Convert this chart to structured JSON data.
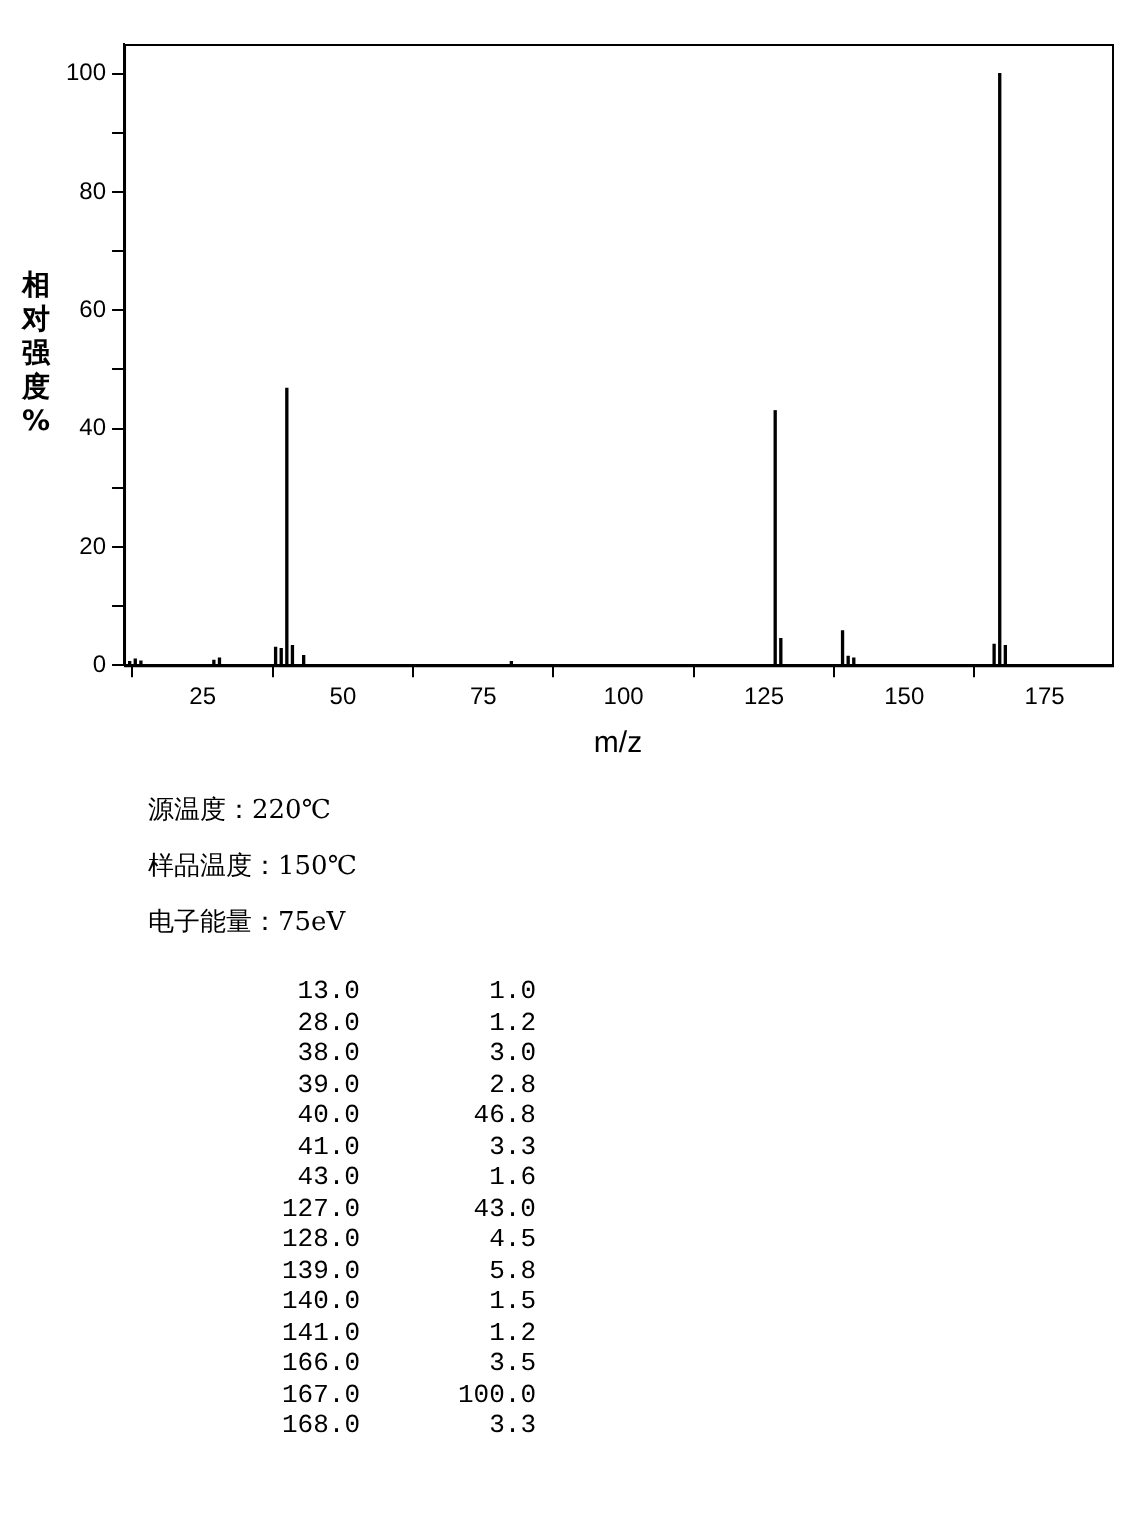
{
  "chart_data": [
    {
      "type": "bar",
      "xlabel": "m/z",
      "ylabel": "相对强度%",
      "x": [
        12,
        13,
        14,
        15,
        26,
        27,
        28,
        29,
        38,
        39,
        40,
        41,
        43,
        64,
        80,
        127,
        128,
        139,
        140,
        141,
        166,
        167,
        168
      ],
      "values": [
        0.6,
        1.0,
        0.7,
        null,
        null,
        0.8,
        1.2,
        null,
        3.0,
        2.8,
        46.8,
        3.3,
        1.6,
        null,
        0.6,
        43.0,
        4.5,
        5.8,
        1.5,
        1.2,
        3.5,
        100.0,
        3.3
      ],
      "color": "#000000",
      "xlim": [
        11,
        187
      ],
      "xticks": [
        25,
        50,
        75,
        100,
        125,
        150,
        175
      ],
      "ylim": [
        0,
        105
      ],
      "yticks": [
        0,
        {
          "value": 10,
          "label": null
        },
        20,
        {
          "value": 30,
          "label": null
        },
        40,
        {
          "value": 50,
          "label": null
        },
        60,
        {
          "value": 70,
          "label": null
        },
        80,
        {
          "value": 90,
          "label": null
        },
        100
      ],
      "grid": false,
      "legend": false,
      "annotations": [
        "源温度：220℃",
        "样品温度：150℃",
        "电子能量：75eV"
      ]
    },
    {
      "type": "other",
      "annotations": [
        "13.0",
        "1.0",
        "28.0",
        "1.2",
        "38.0",
        "3.0",
        "39.0",
        "2.8",
        "40.0",
        "46.8",
        "41.0",
        "3.3",
        "43.0",
        "1.6",
        "127.0",
        "43.0",
        "128.0",
        "4.5",
        "139.0",
        "5.8",
        "140.0",
        "1.5",
        "141.0",
        "1.2",
        "166.0",
        "3.5",
        "167.0",
        "100.0",
        "168.0",
        "3.3"
      ]
    }
  ]
}
